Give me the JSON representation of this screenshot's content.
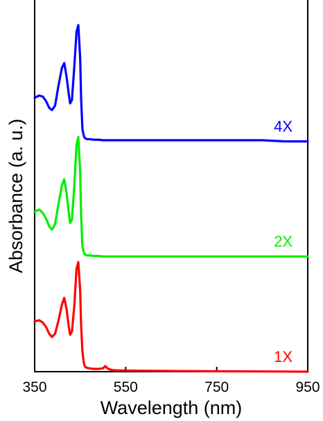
{
  "chart_data": {
    "type": "line",
    "xlabel": "Wavelength (nm)",
    "ylabel": "Absorbance (a. u.)",
    "xlim": [
      350,
      950
    ],
    "ylim": [
      0,
      3.2
    ],
    "x_ticks": [
      350,
      550,
      750,
      950
    ],
    "y_ticks_shown": false,
    "grid": false,
    "legend": "none (series labels placed at right end of each curve)",
    "stacked_offset_plot": true,
    "series": [
      {
        "name": "1X",
        "color": "#ff0000",
        "x": [
          350,
          360,
          368,
          375,
          382,
          388,
          395,
          402,
          410,
          415,
          420,
          425,
          428,
          432,
          437,
          442,
          446,
          450,
          452,
          455,
          458,
          460,
          462,
          465,
          470,
          480,
          490,
          500,
          505,
          510,
          515,
          520,
          530,
          550,
          600,
          650,
          700,
          750,
          800,
          850,
          900,
          950
        ],
        "y": [
          0.45,
          0.46,
          0.44,
          0.4,
          0.34,
          0.31,
          0.34,
          0.45,
          0.6,
          0.66,
          0.56,
          0.4,
          0.33,
          0.36,
          0.58,
          0.92,
          0.98,
          0.72,
          0.42,
          0.18,
          0.08,
          0.05,
          0.04,
          0.035,
          0.03,
          0.025,
          0.025,
          0.03,
          0.05,
          0.03,
          0.02,
          0.015,
          0.012,
          0.01,
          0.008,
          0.006,
          0.005,
          0.004,
          0.003,
          0.002,
          0.001,
          0.0
        ]
      },
      {
        "name": "2X",
        "color": "#00ee00",
        "x": [
          350,
          360,
          368,
          375,
          382,
          388,
          395,
          402,
          410,
          415,
          420,
          425,
          428,
          432,
          437,
          442,
          446,
          450,
          452,
          455,
          458,
          460,
          462,
          465,
          470,
          480,
          490,
          500,
          520,
          550,
          600,
          650,
          700,
          750,
          800,
          850,
          900,
          950
        ],
        "y": [
          1.43,
          1.45,
          1.42,
          1.37,
          1.3,
          1.27,
          1.32,
          1.49,
          1.67,
          1.72,
          1.6,
          1.42,
          1.33,
          1.36,
          1.65,
          2.03,
          2.1,
          1.78,
          1.4,
          1.12,
          1.07,
          1.05,
          1.045,
          1.04,
          1.04,
          1.035,
          1.035,
          1.03,
          1.03,
          1.03,
          1.03,
          1.03,
          1.03,
          1.03,
          1.03,
          1.03,
          1.03,
          1.03
        ]
      },
      {
        "name": "4X",
        "color": "#0000ff",
        "x": [
          350,
          360,
          368,
          375,
          382,
          388,
          395,
          402,
          410,
          415,
          420,
          425,
          428,
          432,
          437,
          442,
          446,
          450,
          452,
          455,
          458,
          460,
          462,
          465,
          470,
          480,
          490,
          500,
          520,
          550,
          600,
          650,
          700,
          750,
          800,
          850,
          900,
          950
        ],
        "y": [
          2.45,
          2.47,
          2.46,
          2.42,
          2.36,
          2.34,
          2.38,
          2.55,
          2.72,
          2.76,
          2.64,
          2.48,
          2.4,
          2.43,
          2.72,
          3.04,
          3.1,
          2.8,
          2.45,
          2.17,
          2.11,
          2.09,
          2.085,
          2.08,
          2.08,
          2.075,
          2.075,
          2.07,
          2.07,
          2.07,
          2.07,
          2.07,
          2.07,
          2.07,
          2.07,
          2.07,
          2.06,
          2.06
        ]
      }
    ]
  }
}
